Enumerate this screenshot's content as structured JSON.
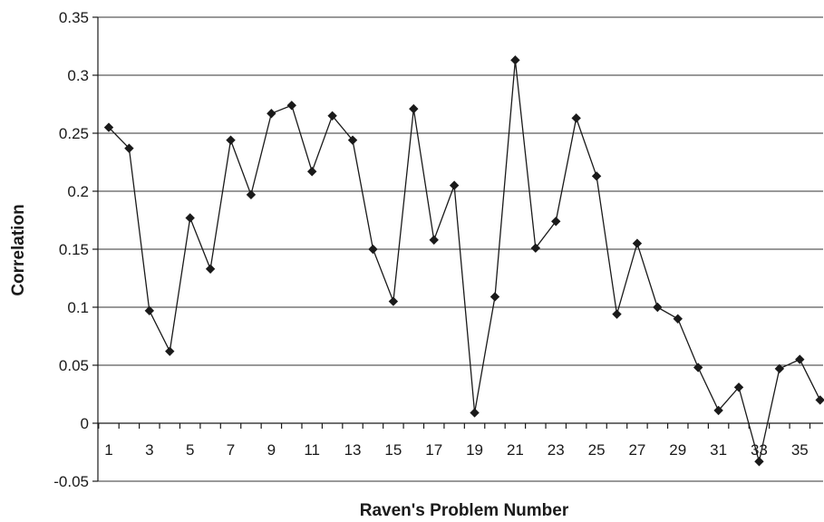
{
  "chart_data": {
    "type": "line",
    "title": "",
    "xlabel": "Raven's Problem Number",
    "ylabel": "Correlation",
    "ylim": [
      -0.05,
      0.35
    ],
    "yticks": [
      "0.35",
      "0.3",
      "0.25",
      "0.2",
      "0.15",
      "0.1",
      "0.05",
      "0",
      "-0.05"
    ],
    "xticks": [
      "1",
      "3",
      "5",
      "7",
      "9",
      "11",
      "13",
      "15",
      "17",
      "19",
      "21",
      "23",
      "25",
      "27",
      "29",
      "31",
      "33",
      "35"
    ],
    "grid": true,
    "marker": "diamond",
    "x": [
      1,
      2,
      3,
      4,
      5,
      6,
      7,
      8,
      9,
      10,
      11,
      12,
      13,
      14,
      15,
      16,
      17,
      18,
      19,
      20,
      21,
      22,
      23,
      24,
      25,
      26,
      27,
      28,
      29,
      30,
      31,
      32,
      33,
      34,
      35,
      36
    ],
    "values": [
      0.255,
      0.237,
      0.097,
      0.062,
      0.177,
      0.133,
      0.244,
      0.197,
      0.267,
      0.274,
      0.217,
      0.265,
      0.244,
      0.15,
      0.105,
      0.271,
      0.158,
      0.205,
      0.009,
      0.109,
      0.313,
      0.151,
      0.174,
      0.263,
      0.213,
      0.094,
      0.155,
      0.1,
      0.09,
      0.048,
      0.011,
      0.031,
      -0.033,
      0.047,
      0.055,
      0.02
    ]
  }
}
